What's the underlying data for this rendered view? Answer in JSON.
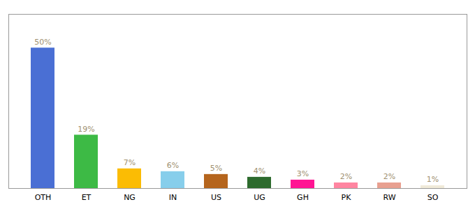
{
  "chart_data": {
    "type": "bar",
    "categories": [
      "OTH",
      "ET",
      "NG",
      "IN",
      "US",
      "UG",
      "GH",
      "PK",
      "RW",
      "SO"
    ],
    "values": [
      50,
      19,
      7,
      6,
      5,
      4,
      3,
      2,
      2,
      1
    ],
    "value_labels": [
      "50%",
      "19%",
      "7%",
      "6%",
      "5%",
      "4%",
      "3%",
      "2%",
      "2%",
      "1%"
    ],
    "colors": [
      "#4a6fd4",
      "#3dba45",
      "#fbbc04",
      "#87ceeb",
      "#b5651d",
      "#2d6a2d",
      "#ff1493",
      "#ff85a1",
      "#e8a090",
      "#f0ead8"
    ],
    "ylim": [
      0,
      62
    ],
    "grid": false,
    "data_labels": true,
    "tick_labels": "x"
  }
}
